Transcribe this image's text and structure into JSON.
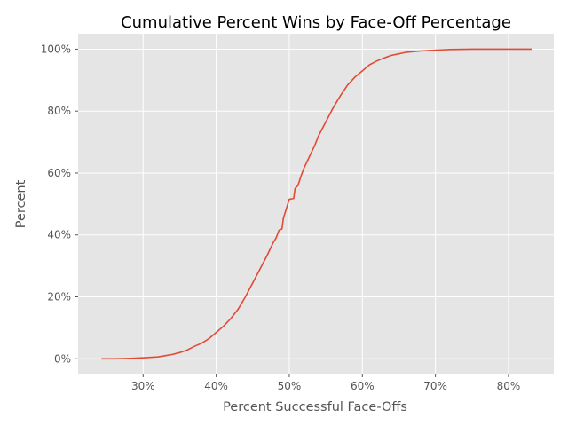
{
  "chart_data": {
    "type": "line",
    "title": "Cumulative Percent Wins by Face-Off Percentage",
    "xlabel": "Percent Successful Face-Offs",
    "ylabel": "Percent",
    "xlim": [
      21.1,
      86.2
    ],
    "ylim": [
      -4.8,
      105
    ],
    "x_ticks": [
      30,
      40,
      50,
      60,
      70,
      80
    ],
    "x_tick_labels": [
      "30%",
      "40%",
      "50%",
      "60%",
      "70%",
      "80%"
    ],
    "y_ticks": [
      0,
      20,
      40,
      60,
      80,
      100
    ],
    "y_tick_labels": [
      "0%",
      "20%",
      "40%",
      "60%",
      "80%",
      "100%"
    ],
    "grid": true,
    "colors": {
      "line": "#E24A33",
      "plot_background": "#E5E5E5",
      "grid": "#FFFFFF"
    },
    "series": [
      {
        "x": [
          24.3,
          26,
          28,
          30,
          32,
          33,
          34,
          35,
          36,
          37,
          38,
          39,
          40,
          41,
          42,
          43,
          44,
          45,
          46,
          47,
          47.8,
          48.2,
          48.6,
          49,
          49.2,
          49.6,
          50,
          50.6,
          50.8,
          51.2,
          51.6,
          52,
          52.5,
          53,
          53.5,
          54,
          55,
          56,
          57,
          58,
          59,
          60,
          61,
          62,
          63,
          64,
          65,
          66,
          68,
          70,
          72,
          75,
          80,
          83.2
        ],
        "y": [
          0,
          0,
          0.1,
          0.3,
          0.6,
          1,
          1.4,
          2,
          2.8,
          4,
          5,
          6.5,
          8.5,
          10.5,
          13,
          16,
          20,
          24.5,
          29,
          33.5,
          37.5,
          39,
          41.5,
          42,
          45.5,
          48.5,
          51.5,
          51.8,
          55,
          56,
          59,
          61.5,
          64,
          66.5,
          69,
          72,
          76.5,
          81,
          85,
          88.5,
          91,
          93,
          95,
          96.2,
          97.2,
          98,
          98.5,
          99,
          99.4,
          99.7,
          99.9,
          100,
          100,
          100
        ]
      }
    ]
  }
}
